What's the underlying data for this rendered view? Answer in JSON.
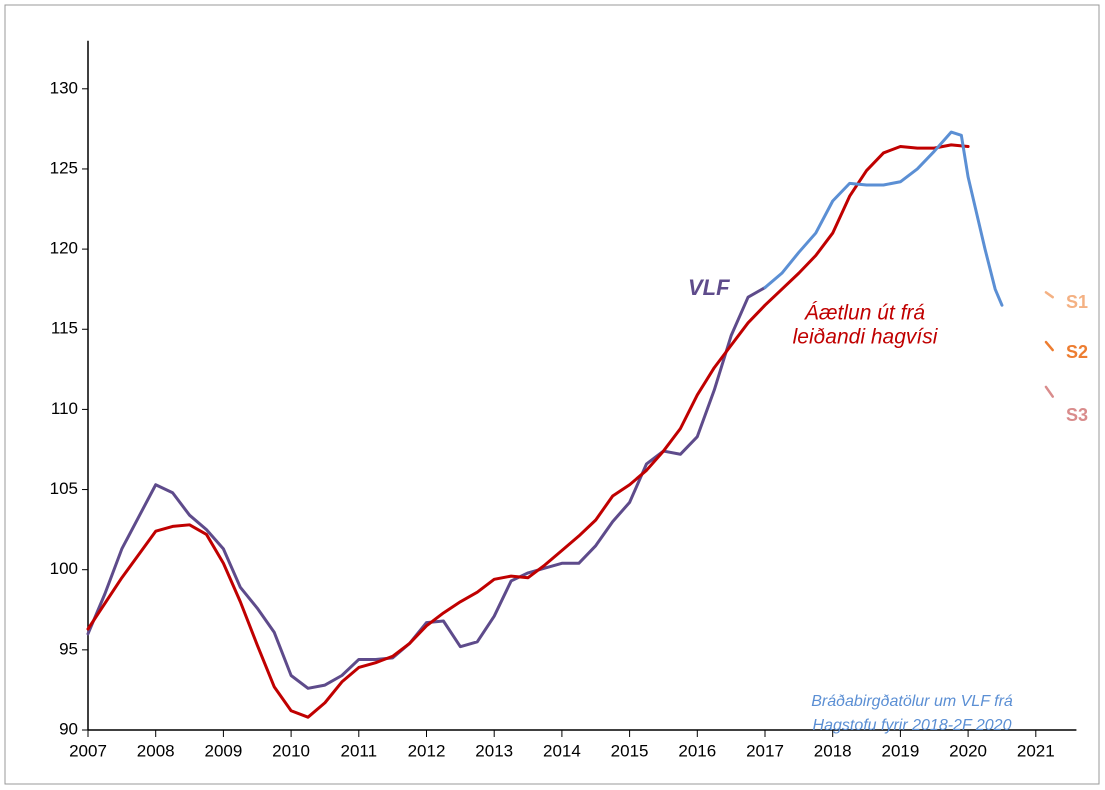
{
  "chart_data": {
    "type": "line",
    "xlim": [
      2007,
      2021.6
    ],
    "ylim": [
      90,
      133
    ],
    "xticks": [
      2007,
      2008,
      2009,
      2010,
      2011,
      2012,
      2013,
      2014,
      2015,
      2016,
      2017,
      2018,
      2019,
      2020,
      2021
    ],
    "yticks": [
      90,
      95,
      100,
      105,
      110,
      115,
      120,
      125,
      130
    ],
    "grid": false,
    "series": [
      {
        "name": "VLF",
        "color": "#5e4b8b",
        "x": [
          2007,
          2007.25,
          2007.5,
          2007.75,
          2008,
          2008.25,
          2008.5,
          2008.75,
          2009,
          2009.25,
          2009.5,
          2009.75,
          2010,
          2010.25,
          2010.5,
          2010.75,
          2011,
          2011.25,
          2011.5,
          2011.75,
          2012,
          2012.25,
          2012.5,
          2012.75,
          2013,
          2013.25,
          2013.5,
          2013.75,
          2014,
          2014.25,
          2014.5,
          2014.75,
          2015,
          2015.25,
          2015.5,
          2015.75,
          2016,
          2016.25,
          2016.5,
          2016.75,
          2017
        ],
        "values": [
          96,
          98.5,
          101.3,
          103.3,
          105.3,
          104.8,
          103.4,
          102.5,
          101.3,
          98.9,
          97.6,
          96.1,
          93.4,
          92.6,
          92.8,
          93.4,
          94.4,
          94.4,
          94.5,
          95.4,
          96.7,
          96.8,
          95.2,
          95.5,
          97.1,
          99.3,
          99.8,
          100.1,
          100.4,
          100.4,
          101.5,
          103.0,
          104.2,
          106.6,
          107.4,
          107.2,
          108.3,
          111.2,
          114.6,
          117.0,
          117.6
        ]
      },
      {
        "label_lines": [
          "Áætlun út frá",
          "leiðandi hagvísi"
        ],
        "color": "#c00000",
        "x": [
          2007,
          2007.5,
          2008,
          2008.25,
          2008.5,
          2008.75,
          2009,
          2009.25,
          2009.5,
          2009.75,
          2010,
          2010.25,
          2010.5,
          2010.75,
          2011,
          2011.25,
          2011.5,
          2011.75,
          2012,
          2012.25,
          2012.5,
          2012.75,
          2013,
          2013.25,
          2013.5,
          2013.75,
          2014,
          2014.25,
          2014.5,
          2014.75,
          2015,
          2015.25,
          2015.5,
          2015.75,
          2016,
          2016.25,
          2016.5,
          2016.75,
          2017,
          2017.25,
          2017.5,
          2017.75,
          2018,
          2018.25,
          2018.5,
          2018.75,
          2019,
          2019.25,
          2019.5,
          2019.75,
          2020
        ],
        "values": [
          96.3,
          99.5,
          102.4,
          102.7,
          102.8,
          102.2,
          100.4,
          98,
          95.3,
          92.7,
          91.2,
          90.8,
          91.7,
          93.0,
          93.9,
          94.2,
          94.6,
          95.4,
          96.5,
          97.3,
          98.0,
          98.6,
          99.4,
          99.6,
          99.5,
          100.3,
          101.2,
          102.1,
          103.1,
          104.6,
          105.3,
          106.2,
          107.4,
          108.8,
          110.9,
          112.6,
          114.0,
          115.4,
          116.5,
          117.5,
          118.5,
          119.6,
          121.0,
          123.3,
          124.9,
          126.0,
          126.4,
          126.3,
          126.3,
          126.5,
          126.4
        ]
      },
      {
        "label_lines": [
          "Bráðabirgðatölur um VLF frá",
          "Hagstofu fyrir 2018-2F 2020"
        ],
        "color": "#5b8fd4",
        "x": [
          2017,
          2017.25,
          2017.5,
          2017.75,
          2018,
          2018.25,
          2018.5,
          2018.75,
          2019,
          2019.25,
          2019.5,
          2019.75,
          2019.9,
          2020,
          2020.25,
          2020.4,
          2020.5
        ],
        "values": [
          117.6,
          118.5,
          119.8,
          121.0,
          123.0,
          124.1,
          124.0,
          124.0,
          124.2,
          125.0,
          126.1,
          127.3,
          127.1,
          124.5,
          120.0,
          117.5,
          116.5
        ]
      },
      {
        "name": "S1",
        "color": "#f4b183",
        "x": [
          2021.15,
          2021.25
        ],
        "values": [
          117.3,
          117.0
        ]
      },
      {
        "name": "S2",
        "color": "#ed7d31",
        "x": [
          2021.15,
          2021.25
        ],
        "values": [
          114.2,
          113.7
        ]
      },
      {
        "name": "S3",
        "color": "#d98c8c",
        "x": [
          2021.15,
          2021.25
        ],
        "values": [
          111.4,
          110.8
        ]
      }
    ]
  }
}
